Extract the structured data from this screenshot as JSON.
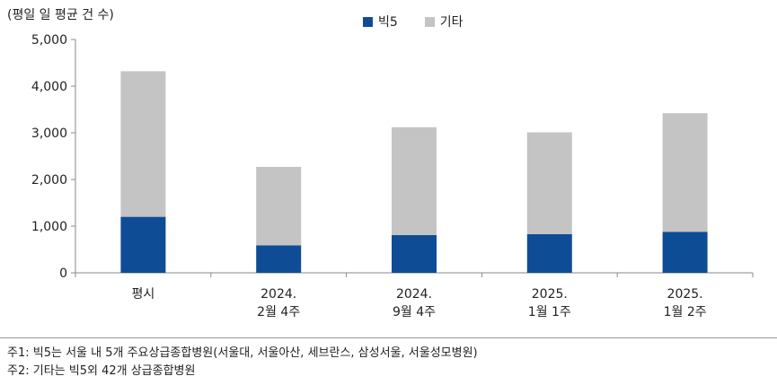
{
  "unit_label": "(평일 일 평균 건 수)",
  "colors": {
    "big5": "#0f4c96",
    "others": "#c4c4c4",
    "axis": "#888888"
  },
  "chart_data": {
    "type": "bar",
    "stacked": true,
    "categories": [
      [
        "평시"
      ],
      [
        "2024.",
        "2월 4주"
      ],
      [
        "2024.",
        "9월 4주"
      ],
      [
        "2025.",
        "1월 1주"
      ],
      [
        "2025.",
        "1월 2주"
      ]
    ],
    "series": [
      {
        "name": "빅5",
        "values": [
          1200,
          590,
          810,
          830,
          880
        ]
      },
      {
        "name": "기타",
        "values": [
          3120,
          1680,
          2310,
          2180,
          2540
        ]
      }
    ],
    "ylim": [
      0,
      5000
    ],
    "yticks": [
      "0",
      "1,000",
      "2,000",
      "3,000",
      "4,000",
      "5,000"
    ],
    "ytick_values": [
      0,
      1000,
      2000,
      3000,
      4000,
      5000
    ],
    "legend_position": "top"
  },
  "notes": [
    "주1: 빅5는 서울 내 5개 주요상급종합병원(서울대, 서울아산, 세브란스, 삼성서울, 서울성모병원)",
    "주2: 기타는 빅5외 42개 상급종합병원"
  ]
}
